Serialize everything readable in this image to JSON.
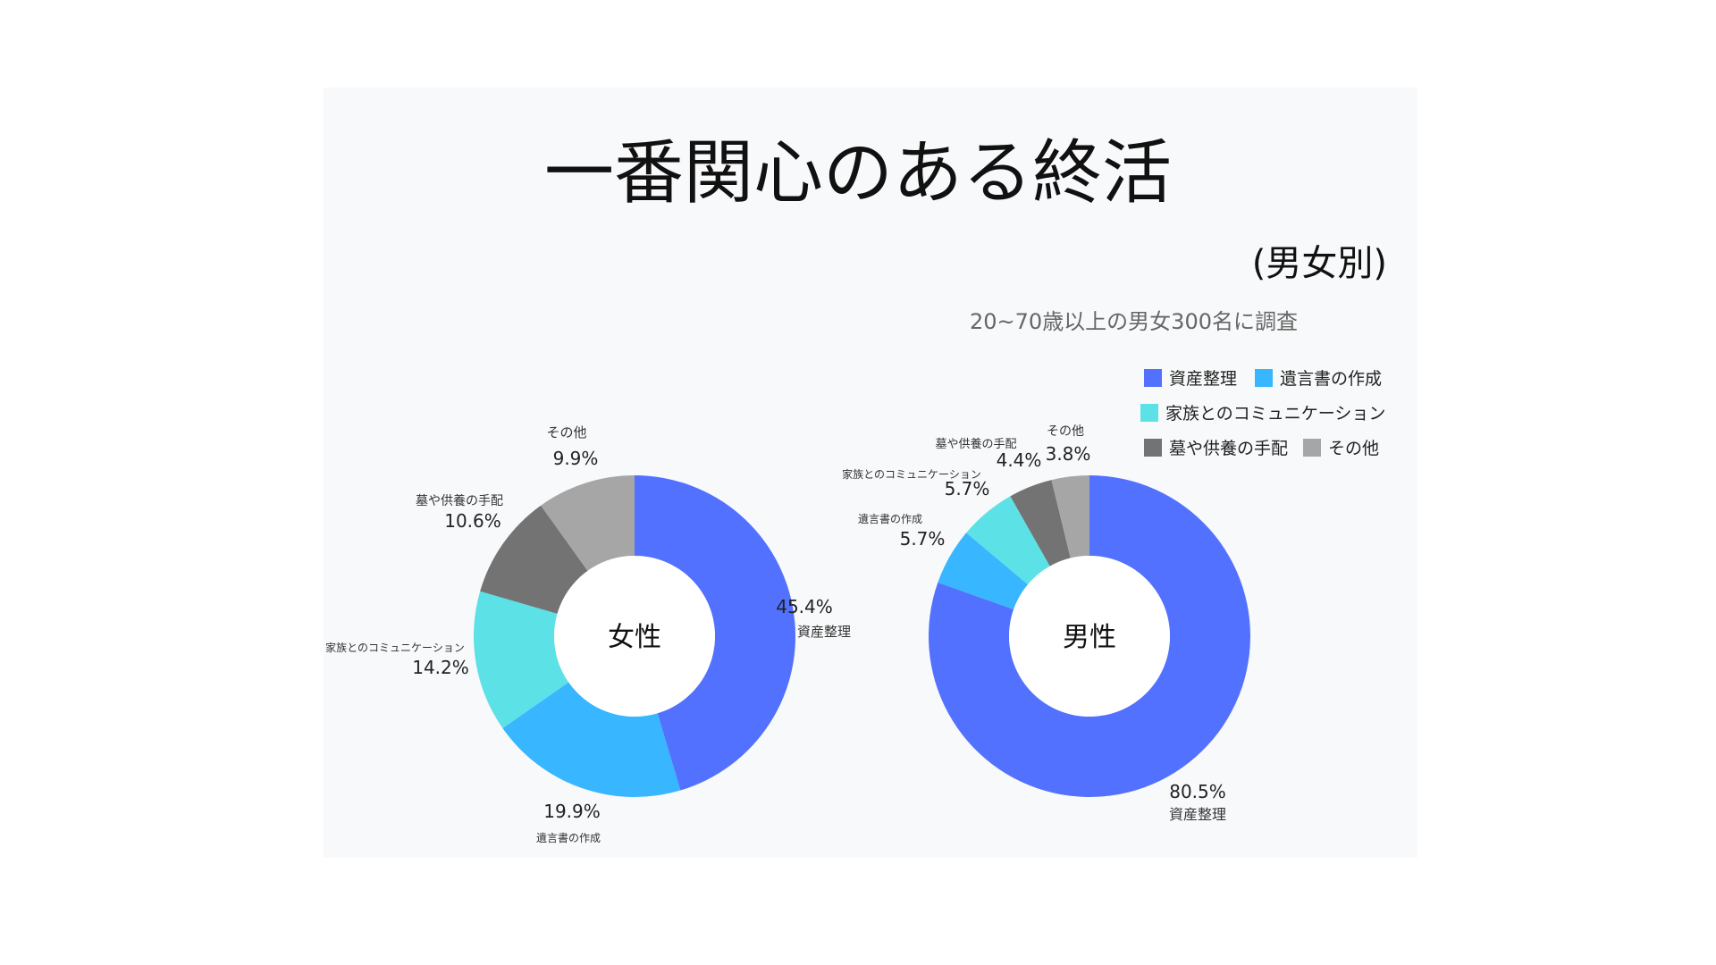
{
  "title": "一番関心のある終活",
  "subtitle": "(男女別)",
  "note": "20~70歳以上の男女300名に調査",
  "legend": [
    {
      "label": "資産整理",
      "color": "#5271ff"
    },
    {
      "label": "遺言書の作成",
      "color": "#38b6ff"
    },
    {
      "label": "家族とのコミュニケーション",
      "color": "#5ce1e6"
    },
    {
      "label": "墓や供養の手配",
      "color": "#737373"
    },
    {
      "label": "その他",
      "color": "#a6a6a6"
    }
  ],
  "chart_data": [
    {
      "type": "pie",
      "variant": "donut",
      "center_label": "女性",
      "categories": [
        "資産整理",
        "遺言書の作成",
        "家族とのコミュニケーション",
        "墓や供養の手配",
        "その他"
      ],
      "values": [
        45.4,
        19.9,
        14.2,
        10.6,
        9.9
      ],
      "value_labels": [
        "45.4%",
        "19.9%",
        "14.2%",
        "10.6%",
        "9.9%"
      ]
    },
    {
      "type": "pie",
      "variant": "donut",
      "center_label": "男性",
      "categories": [
        "資産整理",
        "遺言書の作成",
        "家族とのコミュニケーション",
        "墓や供養の手配",
        "その他"
      ],
      "values": [
        80.5,
        5.7,
        5.7,
        4.4,
        3.8
      ],
      "value_labels": [
        "80.5%",
        "5.7%",
        "5.7%",
        "4.4%",
        "3.8%"
      ]
    }
  ]
}
